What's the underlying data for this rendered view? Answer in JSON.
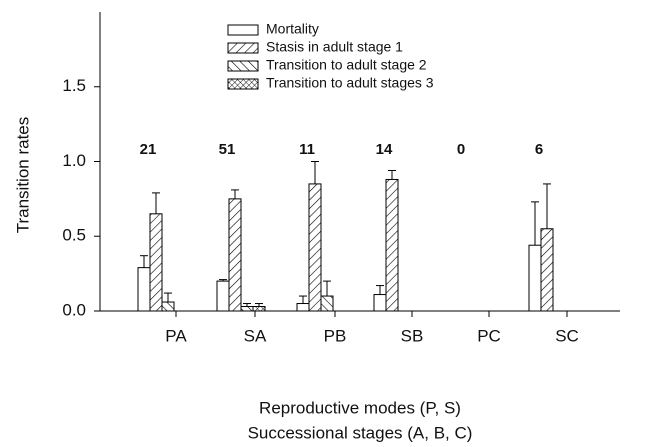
{
  "chart_data": {
    "type": "bar",
    "ylabel": "Transition rates",
    "xlabel_lines": [
      "Reproductive modes (P, S)",
      "Successional stages (A, B, C)"
    ],
    "categories": [
      "PA",
      "SA",
      "PB",
      "SB",
      "PC",
      "SC"
    ],
    "annotations": [
      21,
      51,
      11,
      14,
      0,
      6
    ],
    "series": [
      {
        "name": "Mortality",
        "color": "#000000",
        "hatch": "none",
        "values": [
          0.29,
          0.2,
          0.05,
          0.11,
          null,
          0.44
        ],
        "errors": [
          0.08,
          0.01,
          0.05,
          0.06,
          null,
          0.29
        ]
      },
      {
        "name": "Stasis in adult stage 1",
        "color": "#000000",
        "hatch": "fwd",
        "values": [
          0.65,
          0.75,
          0.85,
          0.88,
          null,
          0.55
        ],
        "errors": [
          0.14,
          0.06,
          0.15,
          0.06,
          null,
          0.3
        ]
      },
      {
        "name": "Transition to adult stage 2",
        "color": "#000000",
        "hatch": "back",
        "values": [
          0.06,
          0.03,
          0.1,
          null,
          null,
          null
        ],
        "errors": [
          0.06,
          0.02,
          0.1,
          null,
          null,
          null
        ]
      },
      {
        "name": "Transition to adult stages 3",
        "color": "#000000",
        "hatch": "cross",
        "values": [
          null,
          0.03,
          null,
          null,
          null,
          null
        ],
        "errors": [
          null,
          0.02,
          null,
          null,
          null,
          null
        ]
      }
    ],
    "ylim": [
      0,
      2.0
    ],
    "yticks": [
      {
        "value": 0,
        "label": "0.0"
      },
      0.5,
      {
        "value": 1,
        "label": "1.0"
      },
      1.5
    ],
    "legend": "upper-left"
  }
}
